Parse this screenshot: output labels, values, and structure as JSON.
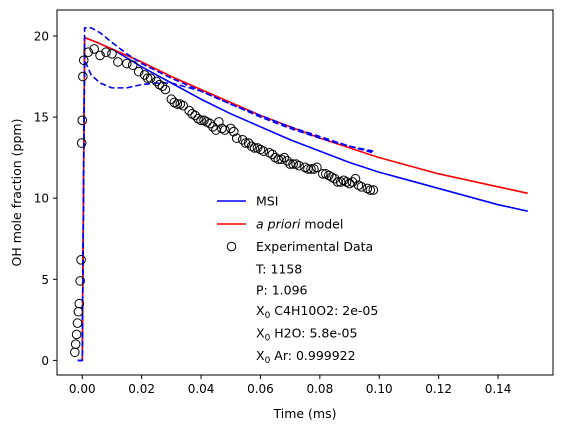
{
  "chart_data": {
    "type": "line",
    "title": "",
    "xlabel": "Time (ms)",
    "ylabel": "OH mole fraction (ppm)",
    "xlim": [
      -0.0085,
      0.1585
    ],
    "ylim": [
      -0.9,
      21.6
    ],
    "xticks": [
      0.0,
      0.02,
      0.04,
      0.06,
      0.08,
      0.1,
      0.12,
      0.14
    ],
    "xtick_labels": [
      "0.00",
      "0.02",
      "0.04",
      "0.06",
      "0.08",
      "0.10",
      "0.12",
      "0.14"
    ],
    "yticks": [
      0,
      5,
      10,
      15,
      20
    ],
    "ytick_labels": [
      "0",
      "5",
      "10",
      "15",
      "20"
    ],
    "grid": false,
    "legend_position": "center",
    "series": [
      {
        "name": "MSI",
        "color": "#0000ff",
        "style": "solid",
        "x": [
          -0.0015,
          0.0,
          0.0008,
          0.005,
          0.01,
          0.02,
          0.03,
          0.04,
          0.05,
          0.06,
          0.07,
          0.08,
          0.09,
          0.1,
          0.11,
          0.12,
          0.13,
          0.14,
          0.15
        ],
        "y": [
          0.0,
          0.0,
          19.9,
          19.6,
          19.2,
          18.1,
          17.1,
          16.1,
          15.2,
          14.4,
          13.6,
          12.9,
          12.2,
          11.6,
          11.1,
          10.6,
          10.1,
          9.6,
          9.2
        ]
      },
      {
        "name": "a priori model",
        "color": "#ff0000",
        "style": "solid",
        "x": [
          -0.0015,
          0.0,
          0.0008,
          0.005,
          0.01,
          0.02,
          0.03,
          0.04,
          0.05,
          0.06,
          0.07,
          0.08,
          0.09,
          0.1,
          0.11,
          0.12,
          0.13,
          0.14,
          0.15
        ],
        "y": [
          0.0,
          0.0,
          19.9,
          19.6,
          19.2,
          18.4,
          17.5,
          16.7,
          15.9,
          15.1,
          14.4,
          13.7,
          13.1,
          12.5,
          12.0,
          11.5,
          11.1,
          10.7,
          10.3
        ]
      },
      {
        "name": "MSI upper bound",
        "color": "#0000ff",
        "style": "dashed",
        "x": [
          -0.0015,
          0.0,
          0.0008,
          0.003,
          0.006,
          0.01,
          0.015,
          0.02,
          0.03,
          0.04,
          0.05,
          0.06,
          0.07,
          0.08,
          0.09,
          0.098
        ],
        "y": [
          0.0,
          0.0,
          20.5,
          20.5,
          20.2,
          19.6,
          18.9,
          18.3,
          17.4,
          16.6,
          15.8,
          15.0,
          14.3,
          13.7,
          13.2,
          12.9
        ]
      },
      {
        "name": "MSI lower bound",
        "color": "#0000ff",
        "style": "dashed",
        "x": [
          -0.0015,
          0.0,
          0.0008,
          0.003,
          0.006,
          0.01,
          0.015,
          0.02,
          0.025,
          0.03,
          0.04,
          0.05,
          0.06,
          0.07,
          0.08,
          0.09,
          0.098
        ],
        "y": [
          0.0,
          0.0,
          18.5,
          17.6,
          17.1,
          16.8,
          16.8,
          17.0,
          17.1,
          17.1,
          16.6,
          15.8,
          15.1,
          14.4,
          13.8,
          13.2,
          12.8
        ]
      },
      {
        "name": "Experimental Data",
        "type": "scatter",
        "marker": "open-circle",
        "color": "#000000",
        "x": [
          -0.0025,
          -0.0022,
          -0.0019,
          -0.0016,
          -0.0013,
          -0.001,
          -0.0007,
          -0.0004,
          -0.0002,
          0.0,
          0.0002,
          0.0005,
          0.002,
          0.004,
          0.006,
          0.008,
          0.01,
          0.012,
          0.015,
          0.017,
          0.019,
          0.021,
          0.022,
          0.023,
          0.025,
          0.026,
          0.027,
          0.028,
          0.03,
          0.031,
          0.032,
          0.033,
          0.034,
          0.036,
          0.037,
          0.038,
          0.039,
          0.04,
          0.041,
          0.042,
          0.043,
          0.044,
          0.045,
          0.046,
          0.047,
          0.048,
          0.05,
          0.051,
          0.052,
          0.054,
          0.055,
          0.056,
          0.057,
          0.058,
          0.059,
          0.06,
          0.061,
          0.063,
          0.064,
          0.065,
          0.066,
          0.067,
          0.068,
          0.069,
          0.07,
          0.071,
          0.072,
          0.073,
          0.075,
          0.076,
          0.077,
          0.078,
          0.079,
          0.081,
          0.082,
          0.083,
          0.084,
          0.085,
          0.086,
          0.087,
          0.088,
          0.089,
          0.09,
          0.091,
          0.092,
          0.093,
          0.094,
          0.096,
          0.097,
          0.098
        ],
        "y": [
          0.5,
          1.0,
          1.6,
          2.3,
          3.0,
          3.5,
          4.9,
          6.2,
          13.4,
          14.8,
          17.5,
          18.5,
          19.0,
          19.2,
          18.8,
          19.0,
          18.9,
          18.4,
          18.3,
          18.2,
          17.8,
          17.6,
          17.4,
          17.4,
          17.2,
          17.0,
          16.9,
          16.7,
          16.1,
          15.9,
          15.8,
          15.8,
          15.7,
          15.4,
          15.2,
          15.1,
          14.9,
          14.8,
          14.8,
          14.7,
          14.6,
          14.4,
          14.2,
          14.7,
          14.3,
          14.2,
          14.3,
          14.1,
          13.7,
          13.6,
          13.4,
          13.4,
          13.2,
          13.1,
          13.1,
          13.0,
          12.9,
          12.8,
          12.7,
          12.5,
          12.4,
          12.4,
          12.5,
          12.3,
          12.1,
          12.1,
          12.1,
          12.0,
          11.9,
          11.8,
          11.8,
          11.8,
          11.9,
          11.5,
          11.5,
          11.4,
          11.3,
          11.2,
          11.0,
          11.0,
          11.1,
          11.0,
          10.9,
          11.0,
          11.2,
          10.8,
          10.7,
          10.6,
          10.5,
          10.5
        ]
      }
    ],
    "legend_entries": [
      {
        "label": "MSI",
        "color": "#0000ff",
        "marker": "line"
      },
      {
        "label_italic": "a priori",
        "label_rest": " model",
        "color": "#ff0000",
        "marker": "line"
      },
      {
        "label": "Experimental Data",
        "color": "#000000",
        "marker": "open-circle"
      }
    ],
    "annotations": {
      "temperature": "T: 1158",
      "pressure": "P: 1.096",
      "x0_prefix": "X",
      "x0_subscript": "0",
      "x0_c4h10o2": " C4H10O2: 2e-05",
      "x0_h2o": " H2O: 5.8e-05",
      "x0_ar": " Ar: 0.999922"
    }
  }
}
